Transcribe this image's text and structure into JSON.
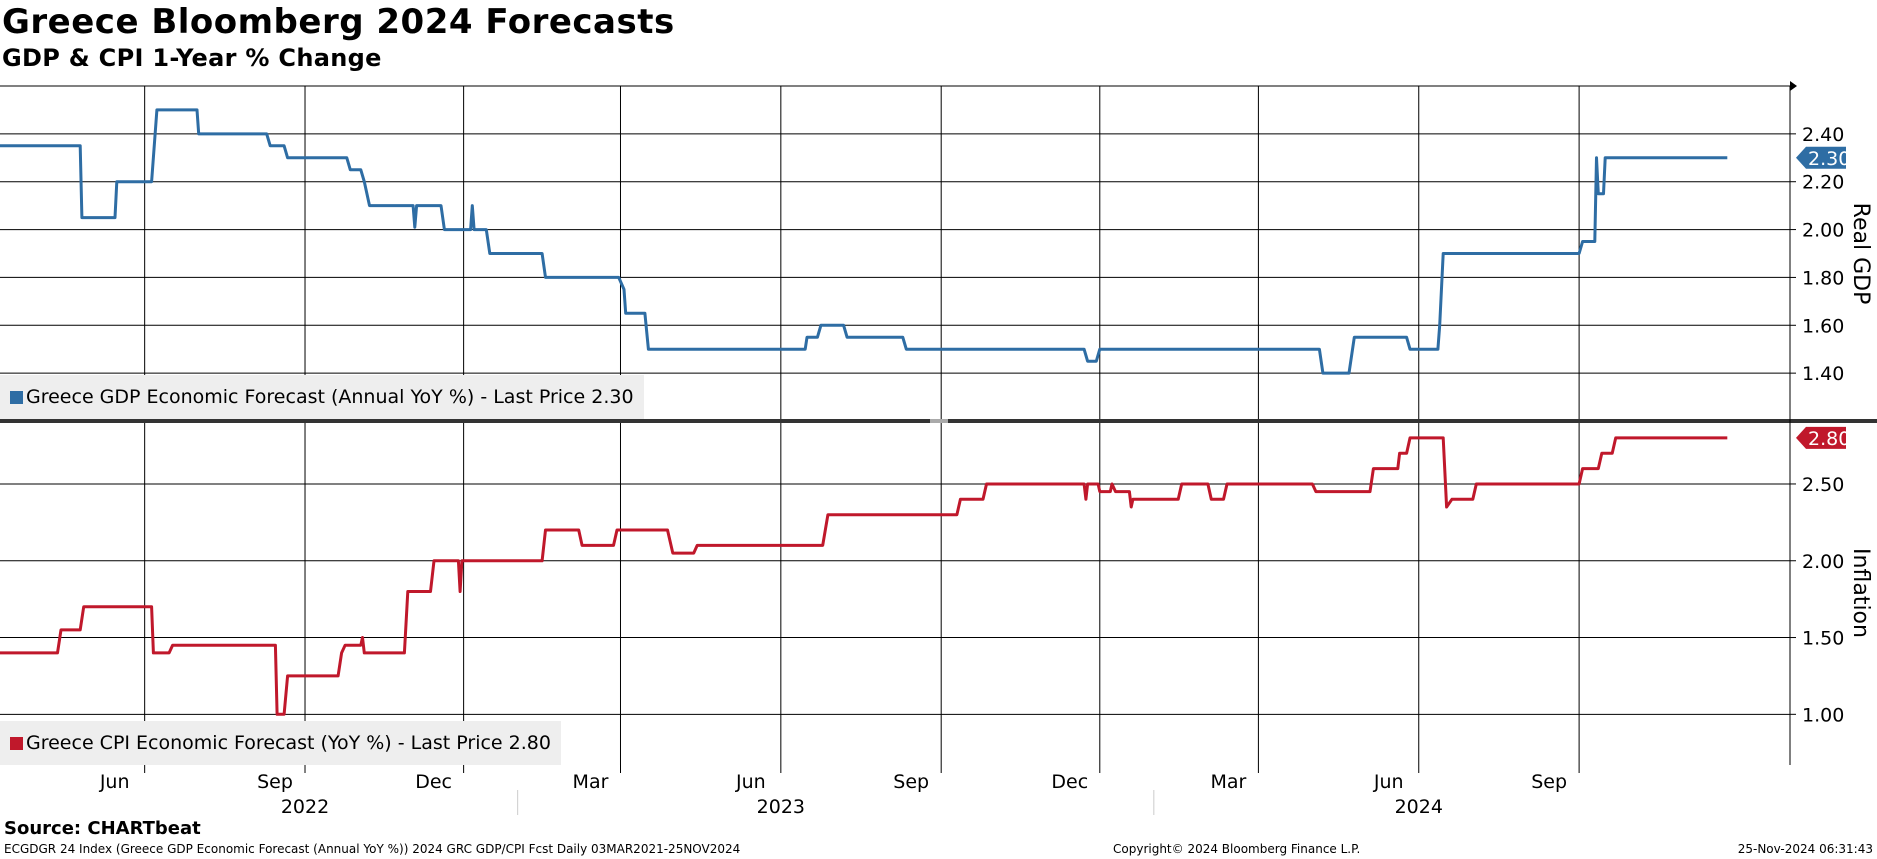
{
  "title": "Greece Bloomberg 2024 Forecasts",
  "subtitle": "GDP & CPI 1-Year % Change",
  "source": "Source: CHARTbeat",
  "footer": {
    "left": "ECGDGR 24 Index (Greece GDP Economic Forecast (Annual YoY %)) 2024 GRC GDP/CPI Fcst  Daily 03MAR2021-25NOV2024",
    "center": "Copyright© 2024 Bloomberg Finance L.P.",
    "right": "25-Nov-2024 06:31:43"
  },
  "colors": {
    "gdp": "#2e6da4",
    "cpi": "#c0182b",
    "grid": "#000000",
    "legend_bg": "#eeeeee"
  },
  "chart_data": {
    "type": "line",
    "x_axis": {
      "month_ticks": [
        {
          "date": "2022-06-01",
          "label": "Jun"
        },
        {
          "date": "2022-09-01",
          "label": "Sep"
        },
        {
          "date": "2022-12-01",
          "label": "Dec"
        },
        {
          "date": "2023-03-01",
          "label": "Mar"
        },
        {
          "date": "2023-06-01",
          "label": "Jun"
        },
        {
          "date": "2023-09-01",
          "label": "Sep"
        },
        {
          "date": "2023-12-01",
          "label": "Dec"
        },
        {
          "date": "2024-03-01",
          "label": "Mar"
        },
        {
          "date": "2024-06-01",
          "label": "Jun"
        },
        {
          "date": "2024-09-01",
          "label": "Sep"
        }
      ],
      "year_labels": [
        {
          "date": "2022-09-01",
          "label": "2022"
        },
        {
          "date": "2023-06-01",
          "label": "2023"
        },
        {
          "date": "2024-06-01",
          "label": "2024"
        }
      ],
      "year_separators": [
        "2023-01-01",
        "2024-01-01"
      ],
      "range": [
        "2022-03-10",
        "2024-12-31"
      ]
    },
    "panels": [
      {
        "name": "gdp",
        "axis_label": "Real GDP",
        "ylim": [
          1.2,
          2.6
        ],
        "ticks": [
          1.4,
          1.6,
          1.8,
          2.0,
          2.2,
          2.4
        ],
        "tick_labels": [
          "1.40",
          "1.60",
          "1.80",
          "2.00",
          "2.20",
          "2.40"
        ],
        "series": {
          "name": "Greece GDP Economic Forecast (Annual YoY %)",
          "legend": "Greece GDP Economic Forecast (Annual YoY %) - Last Price 2.30",
          "last_label": "2.30",
          "last_value": 2.3,
          "points": [
            [
              "2022-03-10",
              2.35
            ],
            [
              "2022-04-25",
              2.35
            ],
            [
              "2022-04-26",
              2.05
            ],
            [
              "2022-05-15",
              2.05
            ],
            [
              "2022-05-16",
              2.2
            ],
            [
              "2022-06-05",
              2.2
            ],
            [
              "2022-06-08",
              2.5
            ],
            [
              "2022-07-01",
              2.5
            ],
            [
              "2022-07-02",
              2.4
            ],
            [
              "2022-08-10",
              2.4
            ],
            [
              "2022-08-12",
              2.35
            ],
            [
              "2022-08-20",
              2.35
            ],
            [
              "2022-08-22",
              2.3
            ],
            [
              "2022-09-25",
              2.3
            ],
            [
              "2022-09-27",
              2.25
            ],
            [
              "2022-10-03",
              2.25
            ],
            [
              "2022-10-05",
              2.2
            ],
            [
              "2022-10-08",
              2.1
            ],
            [
              "2022-11-02",
              2.1
            ],
            [
              "2022-11-03",
              2.01
            ],
            [
              "2022-11-04",
              2.1
            ],
            [
              "2022-11-18",
              2.1
            ],
            [
              "2022-11-20",
              2.0
            ],
            [
              "2022-12-05",
              2.0
            ],
            [
              "2022-12-06",
              2.1
            ],
            [
              "2022-12-07",
              2.0
            ],
            [
              "2022-12-14",
              2.0
            ],
            [
              "2022-12-16",
              1.9
            ],
            [
              "2023-01-15",
              1.9
            ],
            [
              "2023-01-17",
              1.8
            ],
            [
              "2023-02-28",
              1.8
            ],
            [
              "2023-03-03",
              1.75
            ],
            [
              "2023-03-04",
              1.65
            ],
            [
              "2023-03-15",
              1.65
            ],
            [
              "2023-03-17",
              1.5
            ],
            [
              "2023-06-15",
              1.5
            ],
            [
              "2023-06-16",
              1.55
            ],
            [
              "2023-06-22",
              1.55
            ],
            [
              "2023-06-24",
              1.6
            ],
            [
              "2023-07-07",
              1.6
            ],
            [
              "2023-07-09",
              1.55
            ],
            [
              "2023-08-10",
              1.55
            ],
            [
              "2023-08-12",
              1.5
            ],
            [
              "2023-11-22",
              1.5
            ],
            [
              "2023-11-24",
              1.45
            ],
            [
              "2023-11-29",
              1.45
            ],
            [
              "2023-12-01",
              1.5
            ],
            [
              "2024-04-05",
              1.5
            ],
            [
              "2024-04-07",
              1.4
            ],
            [
              "2024-04-22",
              1.4
            ],
            [
              "2024-04-25",
              1.55
            ],
            [
              "2024-05-25",
              1.55
            ],
            [
              "2024-05-27",
              1.5
            ],
            [
              "2024-06-12",
              1.5
            ],
            [
              "2024-06-13",
              1.6
            ],
            [
              "2024-06-15",
              1.9
            ],
            [
              "2024-09-01",
              1.9
            ],
            [
              "2024-09-03",
              1.95
            ],
            [
              "2024-09-10",
              1.95
            ],
            [
              "2024-09-11",
              2.3
            ],
            [
              "2024-09-12",
              2.15
            ],
            [
              "2024-09-15",
              2.15
            ],
            [
              "2024-09-16",
              2.3
            ],
            [
              "2024-11-25",
              2.3
            ]
          ]
        }
      },
      {
        "name": "cpi",
        "axis_label": "Inflation",
        "ylim": [
          0.67,
          2.91
        ],
        "ticks": [
          1.0,
          1.5,
          2.0,
          2.5
        ],
        "tick_labels": [
          "1.00",
          "1.50",
          "2.00",
          "2.50"
        ],
        "series": {
          "name": "Greece CPI Economic Forecast (YoY %)",
          "legend": "Greece CPI Economic Forecast (YoY %) - Last Price 2.80",
          "last_label": "2.80",
          "last_value": 2.8,
          "points": [
            [
              "2022-03-10",
              1.4
            ],
            [
              "2022-04-12",
              1.4
            ],
            [
              "2022-04-14",
              1.55
            ],
            [
              "2022-04-25",
              1.55
            ],
            [
              "2022-04-27",
              1.7
            ],
            [
              "2022-06-05",
              1.7
            ],
            [
              "2022-06-06",
              1.4
            ],
            [
              "2022-06-15",
              1.4
            ],
            [
              "2022-06-17",
              1.45
            ],
            [
              "2022-08-15",
              1.45
            ],
            [
              "2022-08-16",
              1.0
            ],
            [
              "2022-08-20",
              1.0
            ],
            [
              "2022-08-22",
              1.25
            ],
            [
              "2022-09-20",
              1.25
            ],
            [
              "2022-09-22",
              1.4
            ],
            [
              "2022-09-24",
              1.45
            ],
            [
              "2022-10-03",
              1.45
            ],
            [
              "2022-10-04",
              1.5
            ],
            [
              "2022-10-05",
              1.4
            ],
            [
              "2022-10-28",
              1.4
            ],
            [
              "2022-10-30",
              1.8
            ],
            [
              "2022-11-12",
              1.8
            ],
            [
              "2022-11-14",
              2.0
            ],
            [
              "2022-11-28",
              2.0
            ],
            [
              "2022-11-29",
              1.8
            ],
            [
              "2022-11-30",
              2.0
            ],
            [
              "2023-01-15",
              2.0
            ],
            [
              "2023-01-17",
              2.2
            ],
            [
              "2023-02-05",
              2.2
            ],
            [
              "2023-02-07",
              2.1
            ],
            [
              "2023-02-25",
              2.1
            ],
            [
              "2023-02-27",
              2.2
            ],
            [
              "2023-03-28",
              2.2
            ],
            [
              "2023-03-31",
              2.05
            ],
            [
              "2023-04-12",
              2.05
            ],
            [
              "2023-04-14",
              2.1
            ],
            [
              "2023-06-25",
              2.1
            ],
            [
              "2023-06-28",
              2.3
            ],
            [
              "2023-09-10",
              2.3
            ],
            [
              "2023-09-12",
              2.4
            ],
            [
              "2023-09-25",
              2.4
            ],
            [
              "2023-09-27",
              2.5
            ],
            [
              "2023-11-22",
              2.5
            ],
            [
              "2023-11-23",
              2.4
            ],
            [
              "2023-11-24",
              2.5
            ],
            [
              "2023-11-30",
              2.5
            ],
            [
              "2023-12-01",
              2.45
            ],
            [
              "2023-12-07",
              2.45
            ],
            [
              "2023-12-08",
              2.5
            ],
            [
              "2023-12-10",
              2.45
            ],
            [
              "2023-12-18",
              2.45
            ],
            [
              "2023-12-19",
              2.35
            ],
            [
              "2023-12-20",
              2.4
            ],
            [
              "2024-01-15",
              2.4
            ],
            [
              "2024-01-17",
              2.5
            ],
            [
              "2024-02-01",
              2.5
            ],
            [
              "2024-02-03",
              2.4
            ],
            [
              "2024-02-10",
              2.4
            ],
            [
              "2024-02-12",
              2.5
            ],
            [
              "2024-04-01",
              2.5
            ],
            [
              "2024-04-03",
              2.45
            ],
            [
              "2024-05-04",
              2.45
            ],
            [
              "2024-05-06",
              2.6
            ],
            [
              "2024-05-20",
              2.6
            ],
            [
              "2024-05-21",
              2.7
            ],
            [
              "2024-05-25",
              2.7
            ],
            [
              "2024-05-27",
              2.8
            ],
            [
              "2024-06-15",
              2.8
            ],
            [
              "2024-06-17",
              2.35
            ],
            [
              "2024-06-20",
              2.4
            ],
            [
              "2024-07-02",
              2.4
            ],
            [
              "2024-07-04",
              2.5
            ],
            [
              "2024-09-01",
              2.5
            ],
            [
              "2024-09-03",
              2.6
            ],
            [
              "2024-09-12",
              2.6
            ],
            [
              "2024-09-14",
              2.7
            ],
            [
              "2024-09-20",
              2.7
            ],
            [
              "2024-09-22",
              2.8
            ],
            [
              "2024-11-25",
              2.8
            ]
          ]
        }
      }
    ]
  }
}
